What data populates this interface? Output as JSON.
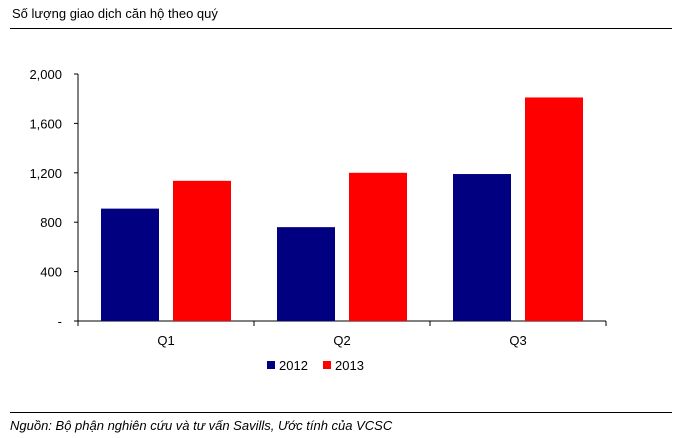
{
  "header": {
    "title": "Số lượng giao dịch căn hộ theo quý"
  },
  "footer": {
    "source": "Nguồn: Bộ phận nghiên cứu và tư vấn Savills, Ước tính của VCSC"
  },
  "chart_data": {
    "type": "bar",
    "title": "Số lượng giao dịch căn hộ theo quý",
    "xlabel": "",
    "ylabel": "",
    "categories": [
      "Q1",
      "Q2",
      "Q3"
    ],
    "series": [
      {
        "name": "2012",
        "color": "#000080",
        "values": [
          910,
          760,
          1190
        ]
      },
      {
        "name": "2013",
        "color": "#ff0000",
        "values": [
          1135,
          1200,
          1810
        ]
      }
    ],
    "ylim": [
      0,
      2000
    ],
    "yticks": [
      0,
      400,
      800,
      1200,
      1600,
      2000
    ],
    "ytick_labels": [
      "-",
      "400",
      "800",
      "1,200",
      "1,600",
      "2,000"
    ],
    "grid": false,
    "legend": "bottom-center"
  }
}
